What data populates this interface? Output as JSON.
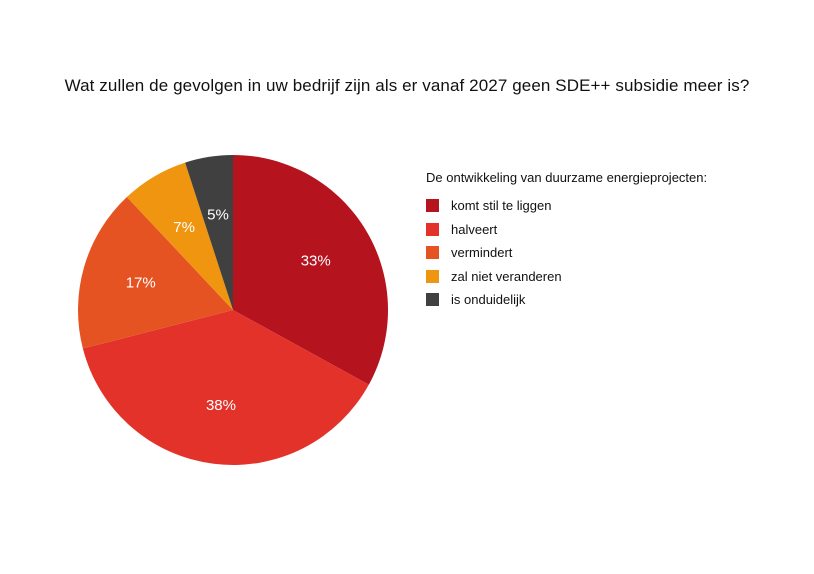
{
  "chart_data": {
    "type": "pie",
    "title": "Wat zullen de gevolgen in uw bedrijf zijn als er vanaf 2027 geen SDE++ subsidie meer is?",
    "legend_title": "De ontwikkeling van duurzame energieprojecten:",
    "legend_position": "right",
    "start": "top",
    "direction": "clockwise",
    "slices": [
      {
        "label": "komt stil te liggen",
        "value": 33,
        "display": "33%",
        "color": "#b5141f"
      },
      {
        "label": "halveert",
        "value": 38,
        "display": "38%",
        "color": "#e2322a"
      },
      {
        "label": "vermindert",
        "value": 17,
        "display": "17%",
        "color": "#e55322"
      },
      {
        "label": "zal niet veranderen",
        "value": 7,
        "display": "7%",
        "color": "#f0950f"
      },
      {
        "label": "is onduidelijk",
        "value": 5,
        "display": "5%",
        "color": "#404040"
      }
    ]
  }
}
